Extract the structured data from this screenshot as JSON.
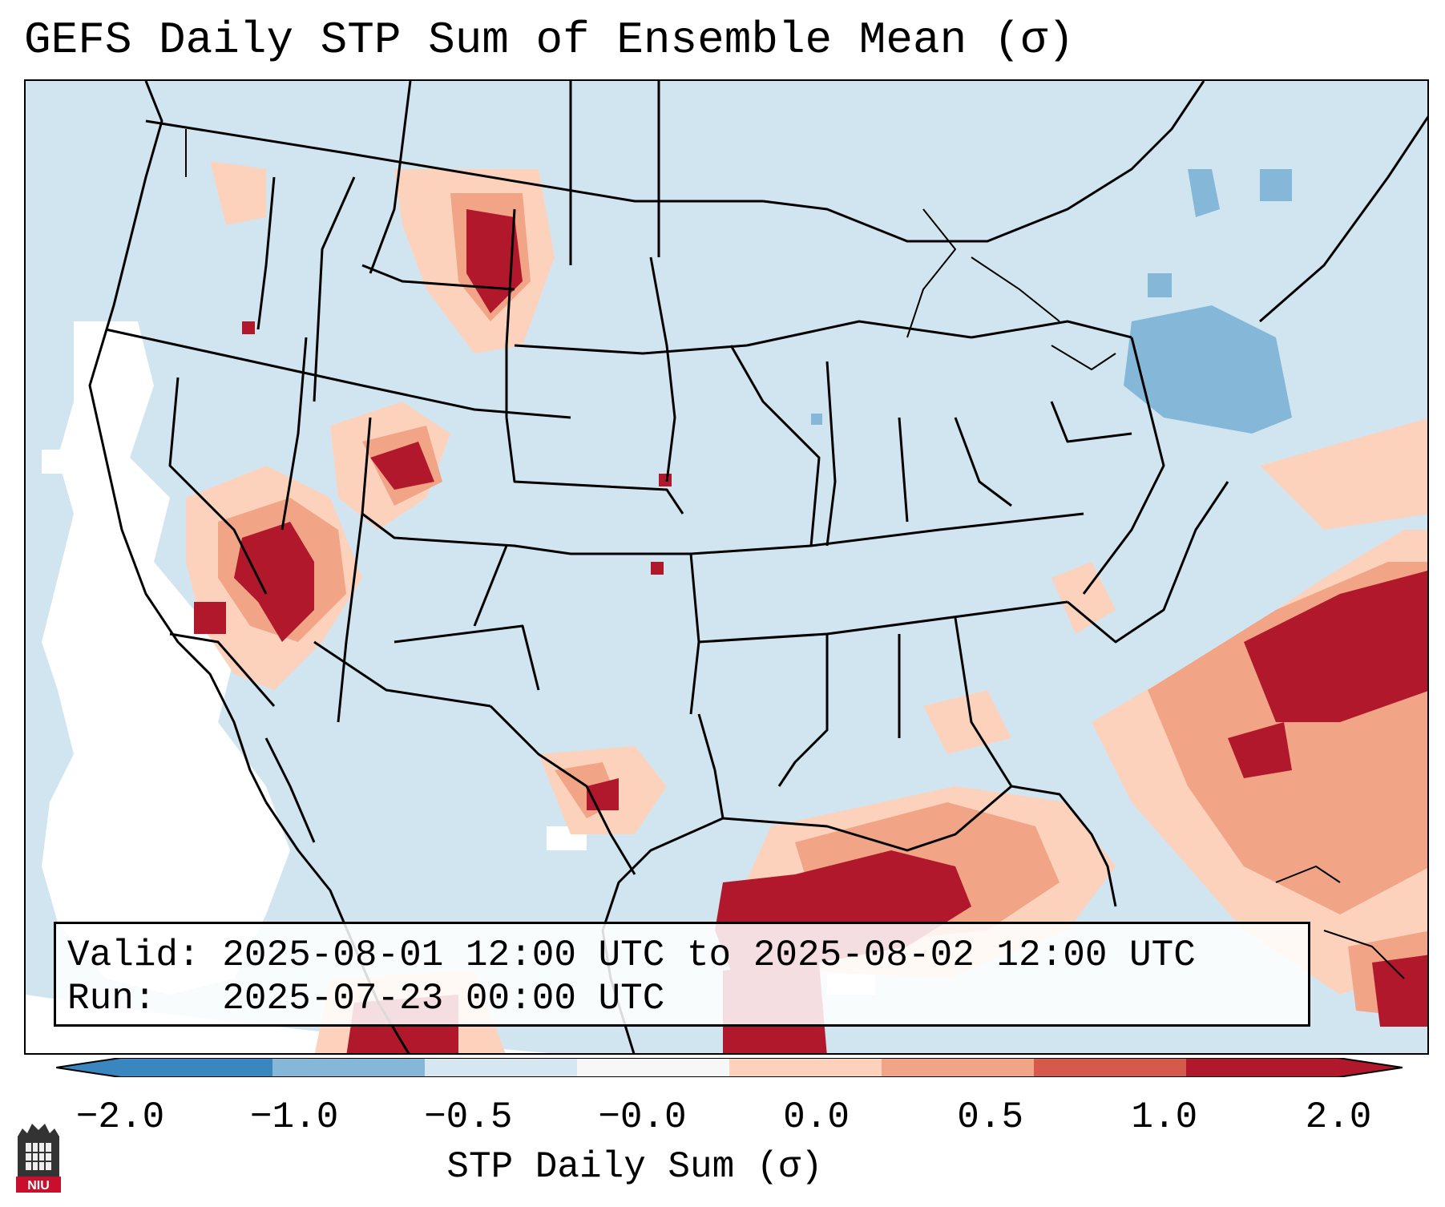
{
  "title": "GEFS Daily STP Sum of Ensemble Mean (σ)",
  "info": {
    "valid_label": "Valid:",
    "valid_value": "2025-08-01 12:00 UTC to 2025-08-02 12:00 UTC",
    "run_label": "Run:",
    "run_value": "2025-07-23 00:00 UTC"
  },
  "colorbar": {
    "label": "STP Daily Sum (σ)",
    "ticks": [
      "−2.0",
      "−1.0",
      "−0.5",
      "−0.0",
      "0.0",
      "0.5",
      "1.0",
      "2.0"
    ],
    "colors": [
      "#3a87c0",
      "#85b8d8",
      "#d6e7f2",
      "#f7f7f7",
      "#fcd2bd",
      "#f1a586",
      "#d55a4c",
      "#b2182b"
    ],
    "extend": "both"
  },
  "map": {
    "background_color": "#d1e5f0",
    "projection": "Lambert conformal, CONUS",
    "regions": [
      {
        "name": "western-nevada-california-white",
        "level": "neutral"
      },
      {
        "name": "southern-nevada-utah-max",
        "level": "high"
      },
      {
        "name": "northern-montana-max",
        "level": "high"
      },
      {
        "name": "gulf-of-mexico-max",
        "level": "high"
      },
      {
        "name": "western-atlantic-max",
        "level": "high"
      },
      {
        "name": "new-york-negative",
        "level": "negative"
      }
    ]
  },
  "logo": {
    "text": "NIU"
  }
}
